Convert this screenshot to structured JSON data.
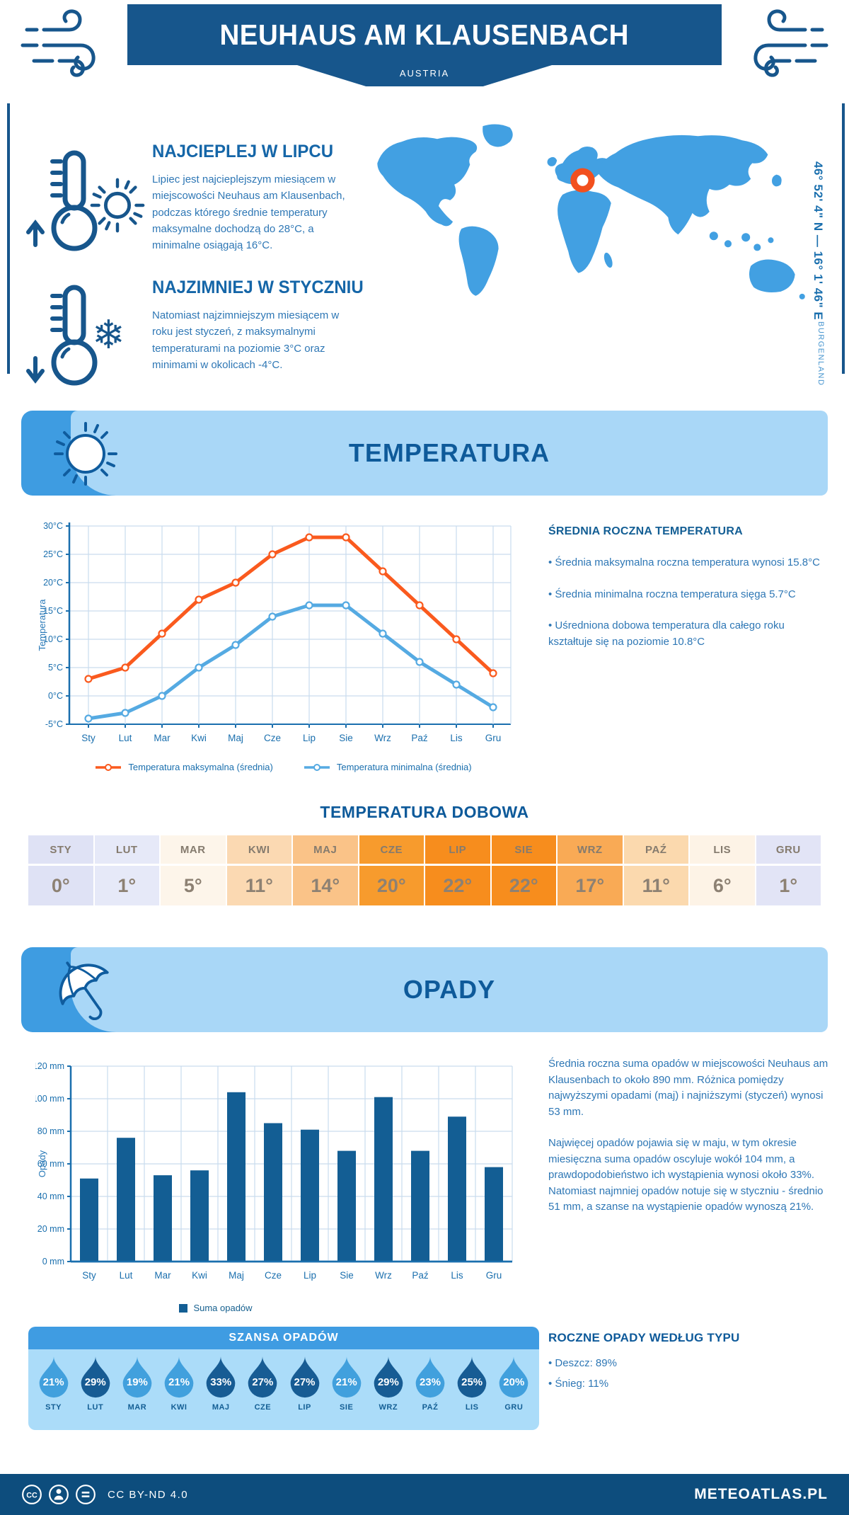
{
  "header": {
    "title": "NEUHAUS AM KLAUSENBACH",
    "country": "AUSTRIA"
  },
  "location": {
    "coordinates": "46° 52' 4\" N — 16° 1' 46\" E",
    "region": "BURGENLAND"
  },
  "highlights": {
    "warm_title": "NAJCIEPLEJ W LIPCU",
    "warm_text": "Lipiec jest najcieplejszym miesiącem w miejscowości Neuhaus am Klausenbach, podczas którego średnie temperatury maksymalne dochodzą do 28°C, a minimalne osiągają 16°C.",
    "cold_title": "NAJZIMNIEJ W STYCZNIU",
    "cold_text": "Natomiast najzimniejszym miesiącem w roku jest styczeń, z maksymalnymi temperaturami na poziomie 3°C oraz minimami w okolicach -4°C."
  },
  "temperature": {
    "section_title": "TEMPERATURA",
    "summary_title": "ŚREDNIA ROCZNA TEMPERATURA",
    "bullets": [
      "• Średnia maksymalna roczna temperatura wynosi 15.8°C",
      "• Średnia minimalna roczna temperatura sięga 5.7°C",
      "• Uśredniona dobowa temperatura dla całego roku kształtuje się na poziomie 10.8°C"
    ],
    "daily_title": "TEMPERATURA DOBOWA"
  },
  "daily_table": {
    "months": [
      "STY",
      "LUT",
      "MAR",
      "KWI",
      "MAJ",
      "CZE",
      "LIP",
      "SIE",
      "WRZ",
      "PAŹ",
      "LIS",
      "GRU"
    ],
    "values": [
      "0°",
      "1°",
      "5°",
      "11°",
      "14°",
      "20°",
      "22°",
      "22°",
      "17°",
      "11°",
      "6°",
      "1°"
    ],
    "colors": [
      "#dfe2f5",
      "#e6e9f8",
      "#fdf5ea",
      "#fbd9b2",
      "#fac388",
      "#f79b2d",
      "#f78d1d",
      "#f78d1d",
      "#f9aa55",
      "#fbd9ae",
      "#fdf3e6",
      "#e2e4f6"
    ]
  },
  "precipitation": {
    "section_title": "OPADY",
    "text1": "Średnia roczna suma opadów w miejscowości Neuhaus am Klausenbach to około 890 mm. Różnica pomiędzy najwyższymi opadami (maj) i najniższymi (styczeń) wynosi 53 mm.",
    "text2": "Najwięcej opadów pojawia się w maju, w tym okresie miesięczna suma opadów oscyluje wokół 104 mm, a prawdopodobieństwo ich wystąpienia wynosi około 33%. Natomiast najmniej opadów notuje się w styczniu - średnio 51 mm, a szanse na wystąpienie opadów wynoszą 21%.",
    "chance_title": "SZANSA OPADÓW",
    "type_title": "ROCZNE OPADY WEDŁUG TYPU",
    "type_bullets": [
      "• Deszcz: 89%",
      "• Śnieg: 11%"
    ]
  },
  "precip_chance": {
    "months": [
      "STY",
      "LUT",
      "MAR",
      "KWI",
      "MAJ",
      "CZE",
      "LIP",
      "SIE",
      "WRZ",
      "PAŹ",
      "LIS",
      "GRU"
    ],
    "values": [
      21,
      29,
      19,
      21,
      33,
      27,
      27,
      21,
      29,
      23,
      25,
      20
    ],
    "light_color": "#41a0dd",
    "dark_color": "#175c94",
    "dark_threshold": 25
  },
  "footer": {
    "license": "CC BY-ND 4.0",
    "brand": "METEOATLAS.PL"
  },
  "colors": {
    "primary_dark": "#17568c",
    "banner_light": "#a9d7f7",
    "banner_corner": "#3e9ce1",
    "map_fill": "#42a0e2",
    "marker_orange": "#f2501e",
    "footer_bg": "#0d4d7d"
  },
  "chart_data": [
    {
      "type": "line",
      "title": "",
      "categories": [
        "Sty",
        "Lut",
        "Mar",
        "Kwi",
        "Maj",
        "Cze",
        "Lip",
        "Sie",
        "Wrz",
        "Paź",
        "Lis",
        "Gru"
      ],
      "series": [
        {
          "name": "Temperatura maksymalna (średnia)",
          "color": "#fa5a1e",
          "values": [
            3,
            5,
            11,
            17,
            20,
            25,
            28,
            28,
            22,
            16,
            10,
            4
          ]
        },
        {
          "name": "Temperatura minimalna (średnia)",
          "color": "#55aae2",
          "values": [
            -4,
            -3,
            0,
            5,
            9,
            14,
            16,
            16,
            11,
            6,
            2,
            -2
          ]
        }
      ],
      "xlabel": "",
      "ylabel": "Temperatura",
      "ytick_suffix": "°C",
      "ylim": [
        -5,
        30
      ],
      "ystep": 5,
      "grid": true,
      "legend_position": "bottom"
    },
    {
      "type": "bar",
      "title": "",
      "categories": [
        "Sty",
        "Lut",
        "Mar",
        "Kwi",
        "Maj",
        "Cze",
        "Lip",
        "Sie",
        "Wrz",
        "Paź",
        "Lis",
        "Gru"
      ],
      "series": [
        {
          "name": "Suma opadów",
          "color": "#135e94",
          "values": [
            51,
            76,
            53,
            56,
            104,
            85,
            81,
            68,
            101,
            68,
            89,
            58
          ]
        }
      ],
      "xlabel": "",
      "ylabel": "Opady",
      "ytick_suffix": " mm",
      "ylim": [
        0,
        120
      ],
      "ystep": 20,
      "grid": true,
      "legend_position": "bottom"
    }
  ]
}
